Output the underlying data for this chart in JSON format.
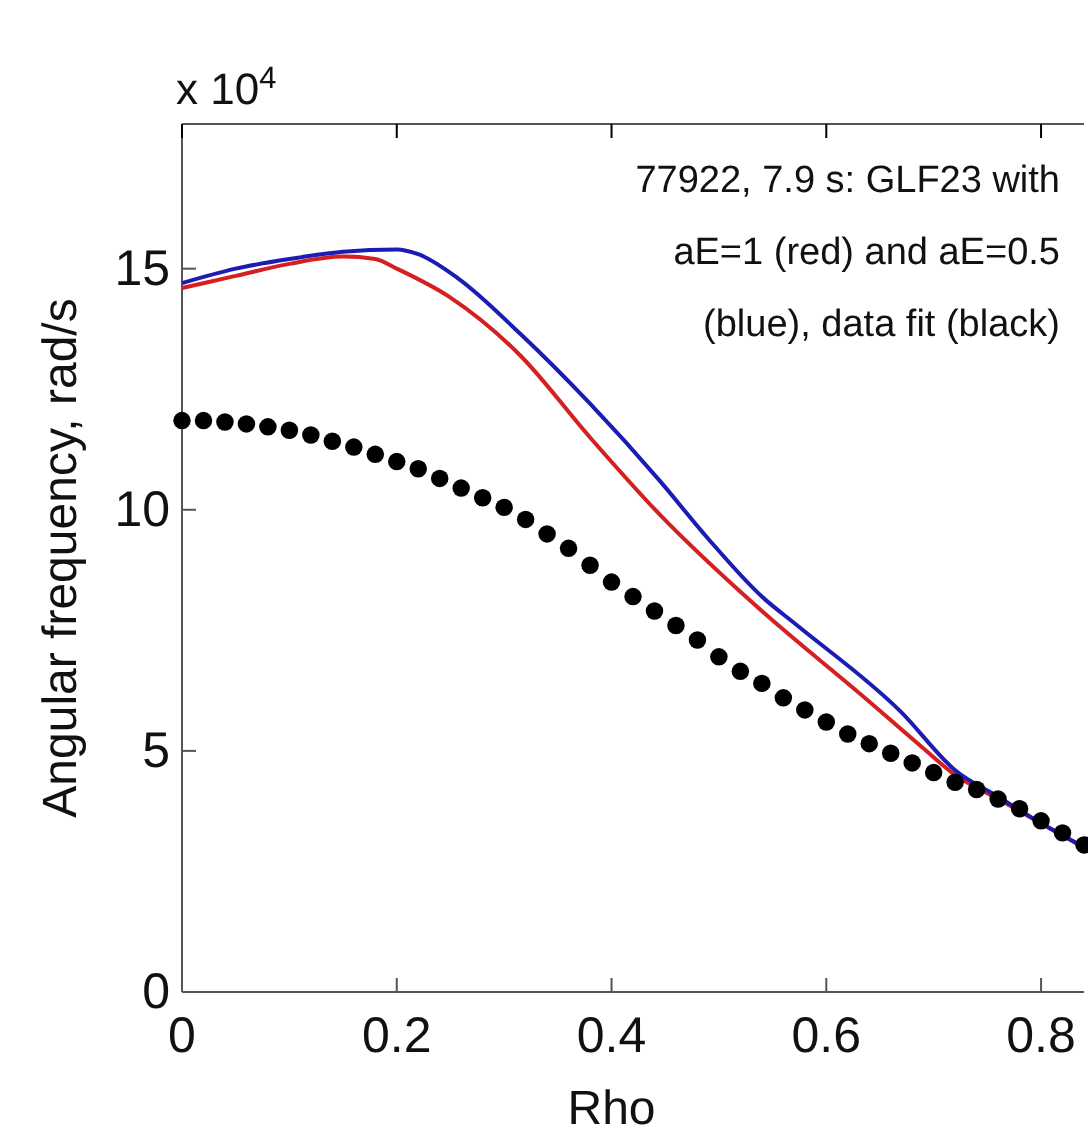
{
  "chart_data": {
    "type": "line",
    "xlabel": "Rho",
    "ylabel": "Angular frequency, rad/s",
    "annotations": [
      "x 10$^{4}$",
      "77922, 7.9 s: GLF23 with\naE=1 (red) and aE=0.5\n(blue), data fit (black)"
    ],
    "xlim": [
      0,
      0.84
    ],
    "ylim": [
      0,
      18
    ],
    "xticks": [
      0,
      0.2,
      0.4,
      0.6,
      0.8
    ],
    "yticks": [
      0,
      5,
      10,
      15
    ],
    "grid": false,
    "series": [
      {
        "color": "#d42020",
        "x": [
          0,
          0.05,
          0.1,
          0.15,
          0.18,
          0.2,
          0.25,
          0.315,
          0.38,
          0.445,
          0.52,
          0.54,
          0.638,
          0.69,
          0.72,
          0.76,
          0.8,
          0.84
        ],
        "values": [
          14.6,
          14.85,
          15.1,
          15.25,
          15.2,
          15.0,
          14.4,
          13.2,
          11.5,
          9.9,
          8.3,
          7.9,
          6.06,
          5.06,
          4.5,
          4.0,
          3.5,
          3.0
        ]
      },
      {
        "color": "#1c1cb4",
        "x": [
          0,
          0.05,
          0.1,
          0.15,
          0.2,
          0.22,
          0.257,
          0.315,
          0.38,
          0.445,
          0.49,
          0.54,
          0.573,
          0.67,
          0.72,
          0.76,
          0.8,
          0.84
        ],
        "values": [
          14.7,
          15.0,
          15.2,
          15.35,
          15.4,
          15.3,
          14.8,
          13.65,
          12.2,
          10.6,
          9.4,
          8.2,
          7.6,
          5.8,
          4.6,
          4.05,
          3.5,
          3.0
        ]
      },
      {
        "type": "scatter",
        "marker": "circle",
        "color": "#000000",
        "x": [
          0,
          0.02,
          0.04,
          0.06,
          0.08,
          0.1,
          0.12,
          0.14,
          0.16,
          0.18,
          0.2,
          0.22,
          0.24,
          0.26,
          0.28,
          0.3,
          0.32,
          0.34,
          0.36,
          0.38,
          0.4,
          0.42,
          0.44,
          0.46,
          0.48,
          0.5,
          0.52,
          0.54,
          0.56,
          0.58,
          0.6,
          0.62,
          0.64,
          0.66,
          0.68,
          0.7,
          0.72,
          0.74,
          0.76,
          0.78,
          0.8,
          0.82,
          0.84
        ],
        "values": [
          11.85,
          11.85,
          11.82,
          11.78,
          11.72,
          11.65,
          11.55,
          11.42,
          11.3,
          11.15,
          11.0,
          10.85,
          10.65,
          10.45,
          10.25,
          10.05,
          9.8,
          9.5,
          9.2,
          8.85,
          8.5,
          8.2,
          7.9,
          7.6,
          7.3,
          6.95,
          6.65,
          6.4,
          6.1,
          5.85,
          5.6,
          5.35,
          5.15,
          4.95,
          4.75,
          4.55,
          4.35,
          4.2,
          4.0,
          3.8,
          3.55,
          3.3,
          3.05
        ]
      }
    ]
  }
}
